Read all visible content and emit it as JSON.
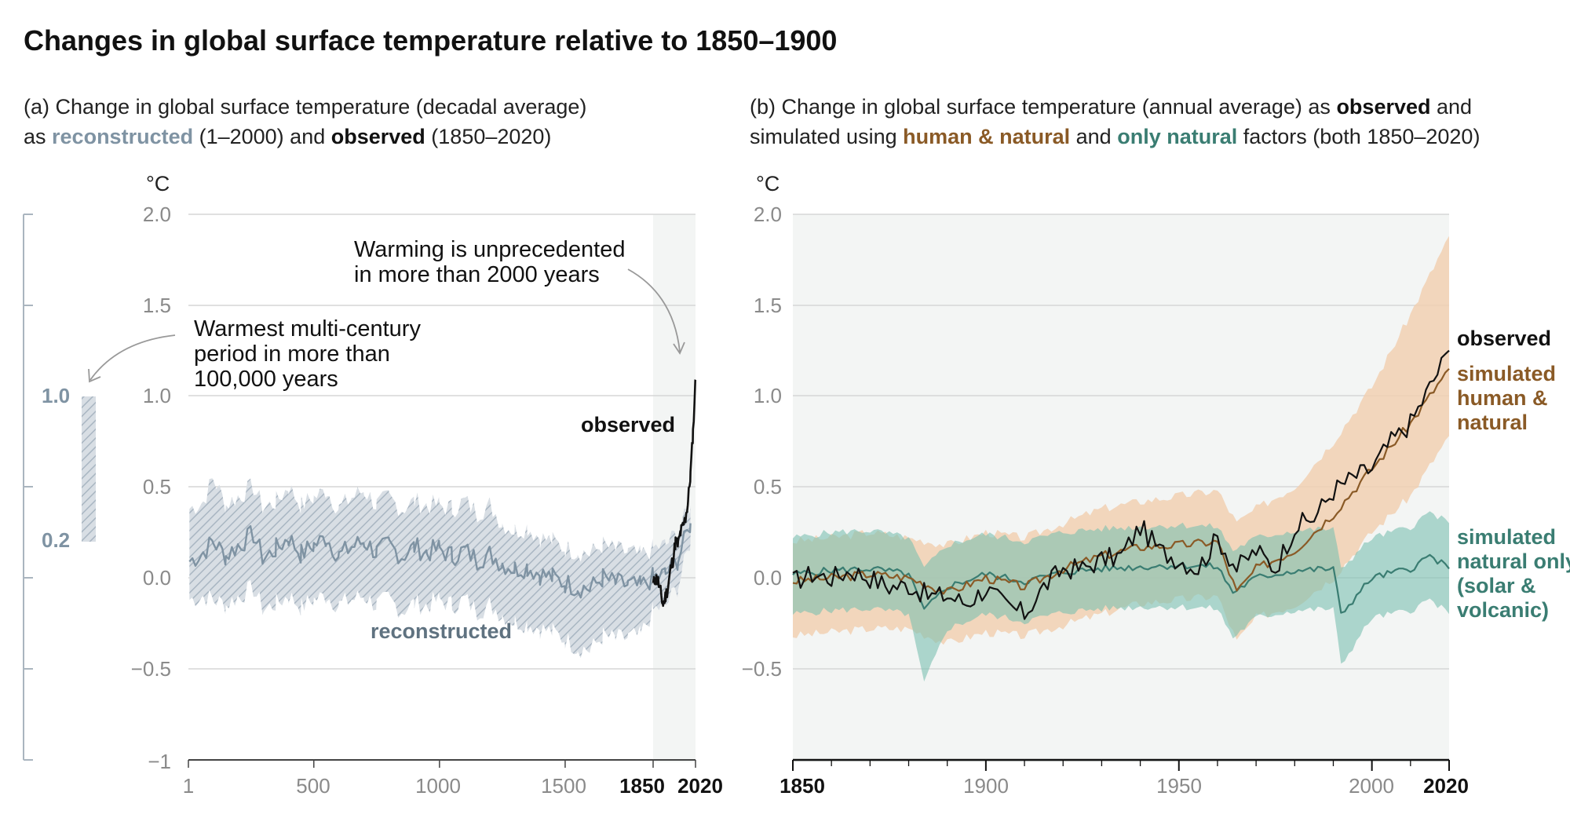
{
  "title": "Changes in global surface temperature relative to 1850–1900",
  "colors": {
    "reconstructed": "#7f93a3",
    "reconstructed_band": "#bcc7d1",
    "observed": "#111111",
    "human_natural": "#8a5a26",
    "human_natural_band": "#f1d0b1",
    "natural_only": "#3a7d72",
    "natural_only_band": "#7cc0b1",
    "shade": "#f3f5f4",
    "grid": "#d6d6d6"
  },
  "panel_a": {
    "subtitle": {
      "line1": "(a) Change in global surface temperature (decadal average)",
      "line2_pre": "as ",
      "line2_reconstructed": "reconstructed",
      "line2_mid": " (1–2000) and ",
      "line2_observed": "observed",
      "line2_post": " (1850–2020)"
    },
    "unit": "°C",
    "y_ticks": [
      "2.0",
      "1.5",
      "1.0",
      "0.5",
      "0.0",
      "−0.5",
      "−1"
    ],
    "x_ticks": [
      "1",
      "500",
      "1000",
      "1500"
    ],
    "x_ticks_bold": [
      "1850",
      "2020"
    ],
    "side_bar": {
      "top_label": "1.0",
      "bottom_label": "0.2",
      "top_value": 1.0,
      "bottom_value": 0.2
    },
    "annotation_unprecedented": [
      "Warming is unprecedented",
      "in more than 2000 years"
    ],
    "annotation_warmest": [
      "Warmest multi-century",
      "period in more than",
      "100,000 years"
    ],
    "label_observed": "observed",
    "label_reconstructed": "reconstructed"
  },
  "panel_b": {
    "subtitle": {
      "line1_pre": "(b) Change in global surface temperature (annual average) as ",
      "line1_observed": "observed",
      "line1_post": " and",
      "line2_pre": "simulated using ",
      "line2_human": "human & natural",
      "line2_mid": " and ",
      "line2_natural": "only natural",
      "line2_post": " factors (both 1850–2020)"
    },
    "unit": "°C",
    "y_ticks": [
      "2.0",
      "1.5",
      "1.0",
      "0.5",
      "0.0",
      "−0.5"
    ],
    "x_ticks": [
      "1900",
      "1950",
      "2000"
    ],
    "x_ticks_bold": [
      "1850",
      "2020"
    ],
    "label_observed": "observed",
    "label_human": [
      "simulated",
      "human &",
      "natural"
    ],
    "label_natural": [
      "simulated",
      "natural only",
      "(solar &",
      "volcanic)"
    ]
  },
  "chart_data": [
    {
      "type": "line",
      "title": "(a) Change in global surface temperature (decadal average)",
      "ylabel": "°C",
      "xlim": [
        1,
        2020
      ],
      "ylim": [
        -1,
        2
      ],
      "series": [
        {
          "name": "reconstructed",
          "x": [
            5,
            60,
            100,
            150,
            200,
            260,
            300,
            350,
            400,
            450,
            500,
            550,
            600,
            650,
            700,
            750,
            800,
            850,
            900,
            950,
            1000,
            1050,
            1100,
            1150,
            1200,
            1250,
            1300,
            1350,
            1400,
            1450,
            1500,
            1550,
            1600,
            1650,
            1700,
            1750,
            1800,
            1850,
            1900,
            1950,
            2000
          ],
          "values": [
            0.09,
            0.14,
            0.2,
            0.12,
            0.18,
            0.24,
            0.1,
            0.16,
            0.22,
            0.13,
            0.18,
            0.22,
            0.12,
            0.17,
            0.2,
            0.14,
            0.18,
            0.12,
            0.17,
            0.14,
            0.16,
            0.12,
            0.15,
            0.1,
            0.13,
            0.08,
            0.05,
            0.06,
            0.02,
            0.0,
            -0.03,
            -0.05,
            -0.06,
            0.0,
            -0.03,
            -0.04,
            -0.05,
            0.0,
            0.02,
            0.1,
            0.3
          ],
          "upper": [
            0.38,
            0.42,
            0.55,
            0.4,
            0.45,
            0.5,
            0.38,
            0.42,
            0.5,
            0.4,
            0.44,
            0.48,
            0.38,
            0.44,
            0.48,
            0.4,
            0.44,
            0.38,
            0.42,
            0.4,
            0.4,
            0.38,
            0.42,
            0.36,
            0.4,
            0.3,
            0.26,
            0.28,
            0.22,
            0.2,
            0.16,
            0.15,
            0.13,
            0.18,
            0.15,
            0.14,
            0.12,
            0.16,
            0.18,
            0.25,
            0.4
          ],
          "lower": [
            -0.12,
            -0.1,
            -0.12,
            -0.15,
            -0.1,
            -0.06,
            -0.18,
            -0.14,
            -0.1,
            -0.16,
            -0.12,
            -0.1,
            -0.15,
            -0.12,
            -0.1,
            -0.15,
            -0.12,
            -0.18,
            -0.14,
            -0.15,
            -0.12,
            -0.15,
            -0.12,
            -0.18,
            -0.15,
            -0.2,
            -0.24,
            -0.25,
            -0.28,
            -0.3,
            -0.34,
            -0.38,
            -0.4,
            -0.32,
            -0.34,
            -0.33,
            -0.32,
            -0.18,
            -0.15,
            -0.05,
            0.2
          ]
        },
        {
          "name": "observed",
          "x": [
            1850,
            1860,
            1870,
            1880,
            1890,
            1900,
            1910,
            1920,
            1930,
            1940,
            1950,
            1960,
            1970,
            1980,
            1990,
            2000,
            2010,
            2020
          ],
          "values": [
            -0.04,
            0.0,
            -0.02,
            -0.08,
            -0.15,
            -0.1,
            -0.05,
            0.05,
            0.1,
            0.2,
            0.18,
            0.25,
            0.28,
            0.33,
            0.42,
            0.57,
            0.8,
            1.09
          ]
        }
      ]
    },
    {
      "type": "line",
      "title": "(b) Change in global surface temperature (annual average)",
      "ylabel": "°C",
      "xlim": [
        1850,
        2020
      ],
      "ylim": [
        -1,
        2
      ],
      "series": [
        {
          "name": "observed",
          "x": [
            1850,
            1855,
            1860,
            1865,
            1870,
            1875,
            1880,
            1885,
            1890,
            1895,
            1900,
            1905,
            1910,
            1915,
            1920,
            1925,
            1930,
            1935,
            1940,
            1945,
            1950,
            1955,
            1960,
            1965,
            1970,
            1975,
            1980,
            1985,
            1990,
            1995,
            2000,
            2005,
            2010,
            2015,
            2020
          ],
          "values": [
            -0.02,
            0.02,
            0.0,
            0.04,
            0.0,
            -0.05,
            -0.04,
            -0.1,
            -0.1,
            -0.14,
            -0.06,
            -0.15,
            -0.2,
            -0.05,
            0.05,
            0.05,
            0.1,
            0.12,
            0.28,
            0.15,
            0.1,
            0.05,
            0.22,
            0.05,
            0.15,
            0.05,
            0.28,
            0.33,
            0.48,
            0.55,
            0.6,
            0.75,
            0.85,
            1.05,
            1.25
          ]
        },
        {
          "name": "simulated human & natural",
          "x": [
            1850,
            1860,
            1870,
            1880,
            1890,
            1900,
            1910,
            1920,
            1930,
            1940,
            1950,
            1960,
            1965,
            1970,
            1980,
            1990,
            2000,
            2010,
            2020
          ],
          "values": [
            -0.02,
            0.0,
            0.02,
            0.0,
            -0.08,
            0.0,
            -0.05,
            0.05,
            0.12,
            0.17,
            0.18,
            0.2,
            -0.08,
            0.05,
            0.15,
            0.35,
            0.6,
            0.85,
            1.15
          ],
          "upper": [
            0.2,
            0.22,
            0.25,
            0.22,
            0.18,
            0.25,
            0.22,
            0.3,
            0.38,
            0.42,
            0.45,
            0.48,
            0.3,
            0.38,
            0.5,
            0.75,
            1.05,
            1.45,
            1.88
          ],
          "lower": [
            -0.32,
            -0.3,
            -0.28,
            -0.28,
            -0.36,
            -0.3,
            -0.32,
            -0.26,
            -0.2,
            -0.14,
            -0.12,
            -0.1,
            -0.35,
            -0.22,
            -0.15,
            0.0,
            0.25,
            0.45,
            0.78
          ]
        },
        {
          "name": "simulated natural only",
          "x": [
            1850,
            1860,
            1870,
            1880,
            1884,
            1890,
            1900,
            1910,
            1920,
            1930,
            1940,
            1950,
            1960,
            1964,
            1970,
            1980,
            1990,
            1992,
            2000,
            2010,
            2015,
            2020
          ],
          "values": [
            0.02,
            0.04,
            0.05,
            0.02,
            -0.18,
            -0.05,
            0.02,
            -0.02,
            0.03,
            0.05,
            0.06,
            0.07,
            0.06,
            -0.08,
            0.0,
            0.04,
            0.05,
            -0.2,
            0.0,
            0.05,
            0.12,
            0.05
          ],
          "upper": [
            0.22,
            0.25,
            0.26,
            0.22,
            0.05,
            0.18,
            0.24,
            0.2,
            0.25,
            0.27,
            0.28,
            0.29,
            0.28,
            0.15,
            0.22,
            0.26,
            0.27,
            0.05,
            0.22,
            0.28,
            0.36,
            0.3
          ],
          "lower": [
            -0.2,
            -0.18,
            -0.17,
            -0.2,
            -0.58,
            -0.28,
            -0.2,
            -0.24,
            -0.19,
            -0.17,
            -0.16,
            -0.16,
            -0.17,
            -0.33,
            -0.22,
            -0.18,
            -0.17,
            -0.48,
            -0.22,
            -0.18,
            -0.12,
            -0.2
          ]
        }
      ]
    }
  ]
}
